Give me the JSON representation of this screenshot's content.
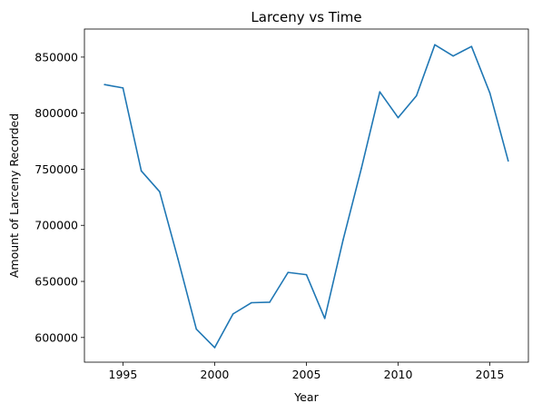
{
  "chart_data": {
    "type": "line",
    "title": "Larceny vs Time",
    "xlabel": "Year",
    "ylabel": "Amount of Larceny Recorded",
    "xlim": [
      1992.9,
      2017.1
    ],
    "ylim": [
      578000,
      875000
    ],
    "x_ticks": [
      1995,
      2000,
      2005,
      2010,
      2015
    ],
    "y_ticks": [
      600000,
      650000,
      700000,
      750000,
      800000,
      850000
    ],
    "grid": false,
    "series": [
      {
        "color": "#1f77b4",
        "x": [
          1994,
          1995,
          1996,
          1997,
          1998,
          1999,
          2000,
          2001,
          2002,
          2003,
          2004,
          2005,
          2006,
          2007,
          2008,
          2009,
          2010,
          2011,
          2012,
          2013,
          2014,
          2015,
          2016
        ],
        "values": [
          825500,
          822500,
          748500,
          730000,
          670000,
          607500,
          591000,
          621000,
          631000,
          631500,
          658000,
          656000,
          617000,
          687000,
          751000,
          819000,
          796000,
          815500,
          861000,
          851000,
          859500,
          818000,
          757500
        ]
      }
    ]
  }
}
